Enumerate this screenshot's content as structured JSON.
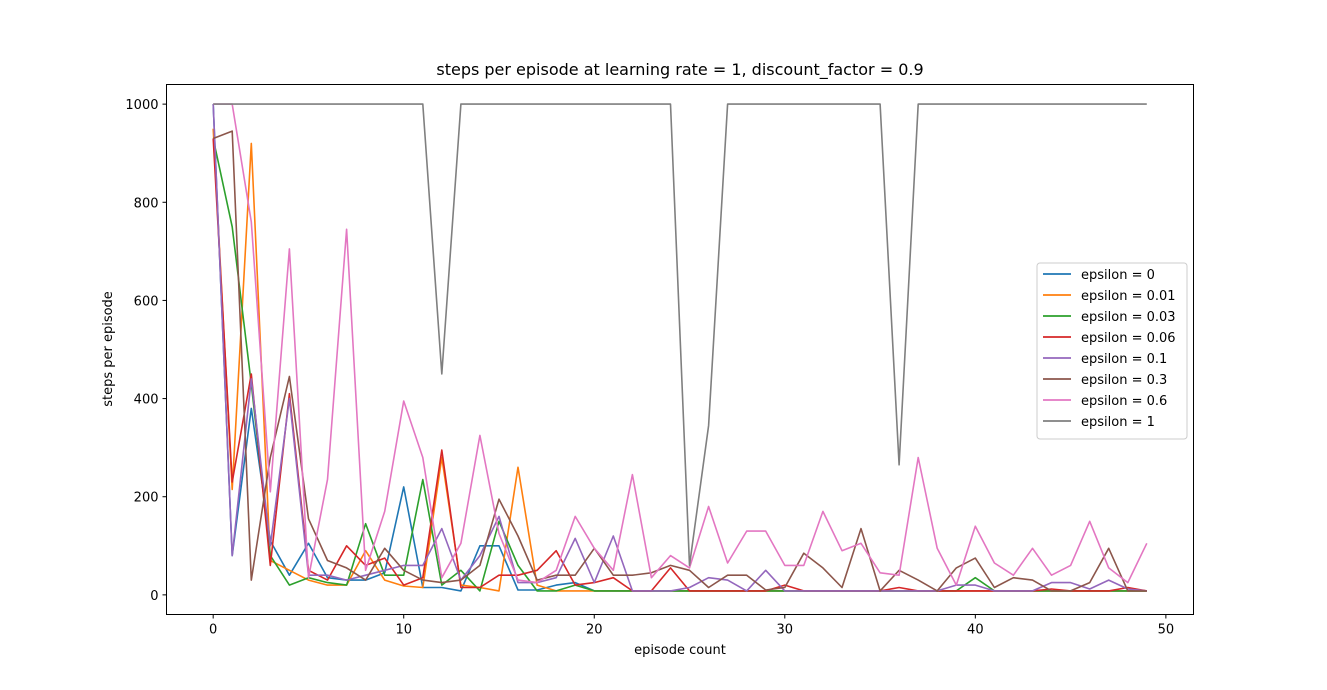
{
  "chart_data": {
    "type": "line",
    "title": "steps per episode at learning rate = 1, discount_factor = 0.9",
    "xlabel": "episode count",
    "ylabel": "steps per episode",
    "xlim": [
      -2.45,
      51.45
    ],
    "ylim": [
      -40,
      1040
    ],
    "xticks": [
      0,
      10,
      20,
      30,
      40,
      50
    ],
    "yticks": [
      0,
      200,
      400,
      600,
      800,
      1000
    ],
    "legend_position": "center right",
    "grid": false,
    "series": [
      {
        "name": "epsilon = 0",
        "color": "#1f77b4",
        "values": [
          1000,
          80,
          380,
          110,
          40,
          105,
          35,
          30,
          30,
          45,
          220,
          15,
          15,
          8,
          100,
          100,
          10,
          10,
          20,
          25,
          8,
          8,
          8,
          8,
          8,
          8,
          8,
          8,
          8,
          8,
          8,
          8,
          8,
          8,
          8,
          8,
          8,
          8,
          8,
          8,
          8,
          8,
          8,
          8,
          8,
          8,
          8,
          8,
          8,
          8
        ]
      },
      {
        "name": "epsilon = 0.01",
        "color": "#ff7f0e",
        "values": [
          950,
          215,
          920,
          70,
          50,
          30,
          20,
          20,
          90,
          30,
          18,
          15,
          280,
          20,
          15,
          8,
          260,
          20,
          8,
          8,
          8,
          8,
          8,
          8,
          8,
          8,
          8,
          8,
          8,
          8,
          8,
          8,
          8,
          8,
          8,
          8,
          8,
          8,
          8,
          8,
          8,
          8,
          8,
          8,
          8,
          8,
          8,
          8,
          8,
          8
        ]
      },
      {
        "name": "epsilon = 0.03",
        "color": "#2ca02c",
        "values": [
          930,
          750,
          430,
          80,
          20,
          35,
          25,
          20,
          145,
          40,
          40,
          235,
          20,
          50,
          8,
          150,
          60,
          8,
          8,
          20,
          8,
          8,
          8,
          8,
          8,
          8,
          8,
          8,
          8,
          8,
          8,
          8,
          8,
          8,
          8,
          8,
          8,
          8,
          8,
          8,
          35,
          8,
          8,
          8,
          8,
          8,
          8,
          8,
          8,
          8
        ]
      },
      {
        "name": "epsilon = 0.06",
        "color": "#d62728",
        "values": [
          930,
          230,
          450,
          60,
          410,
          50,
          30,
          100,
          60,
          75,
          20,
          35,
          295,
          15,
          15,
          40,
          40,
          50,
          90,
          20,
          25,
          35,
          8,
          8,
          55,
          8,
          8,
          8,
          8,
          8,
          20,
          8,
          8,
          8,
          8,
          8,
          15,
          8,
          8,
          8,
          8,
          8,
          8,
          8,
          12,
          8,
          8,
          8,
          15,
          8
        ]
      },
      {
        "name": "epsilon = 0.1",
        "color": "#9467bd",
        "values": [
          1000,
          80,
          440,
          100,
          400,
          40,
          40,
          30,
          40,
          50,
          60,
          60,
          135,
          30,
          80,
          160,
          25,
          25,
          35,
          115,
          25,
          120,
          8,
          8,
          8,
          15,
          35,
          30,
          8,
          50,
          8,
          8,
          8,
          8,
          8,
          8,
          8,
          8,
          8,
          20,
          20,
          8,
          8,
          8,
          25,
          25,
          12,
          30,
          12,
          8
        ]
      },
      {
        "name": "epsilon = 0.3",
        "color": "#8c564b",
        "values": [
          930,
          945,
          30,
          280,
          445,
          155,
          70,
          55,
          30,
          95,
          50,
          30,
          25,
          30,
          60,
          195,
          120,
          30,
          40,
          40,
          95,
          40,
          40,
          45,
          60,
          50,
          15,
          40,
          40,
          10,
          15,
          85,
          55,
          15,
          135,
          8,
          50,
          30,
          8,
          55,
          75,
          15,
          35,
          30,
          8,
          8,
          25,
          95,
          8,
          8
        ]
      },
      {
        "name": "epsilon = 0.6",
        "color": "#e377c2",
        "values": [
          1000,
          1000,
          760,
          210,
          705,
          35,
          235,
          745,
          50,
          170,
          395,
          280,
          35,
          105,
          325,
          125,
          30,
          25,
          50,
          160,
          95,
          50,
          245,
          35,
          80,
          55,
          180,
          65,
          130,
          130,
          60,
          60,
          170,
          90,
          105,
          45,
          40,
          280,
          95,
          20,
          140,
          65,
          40,
          95,
          40,
          60,
          150,
          55,
          25,
          105
        ]
      },
      {
        "name": "epsilon = 1",
        "color": "#7f7f7f",
        "values": [
          1000,
          1000,
          1000,
          1000,
          1000,
          1000,
          1000,
          1000,
          1000,
          1000,
          1000,
          1000,
          450,
          1000,
          1000,
          1000,
          1000,
          1000,
          1000,
          1000,
          1000,
          1000,
          1000,
          1000,
          1000,
          60,
          345,
          1000,
          1000,
          1000,
          1000,
          1000,
          1000,
          1000,
          1000,
          1000,
          265,
          1000,
          1000,
          1000,
          1000,
          1000,
          1000,
          1000,
          1000,
          1000,
          1000,
          1000,
          1000,
          1000
        ]
      }
    ]
  }
}
